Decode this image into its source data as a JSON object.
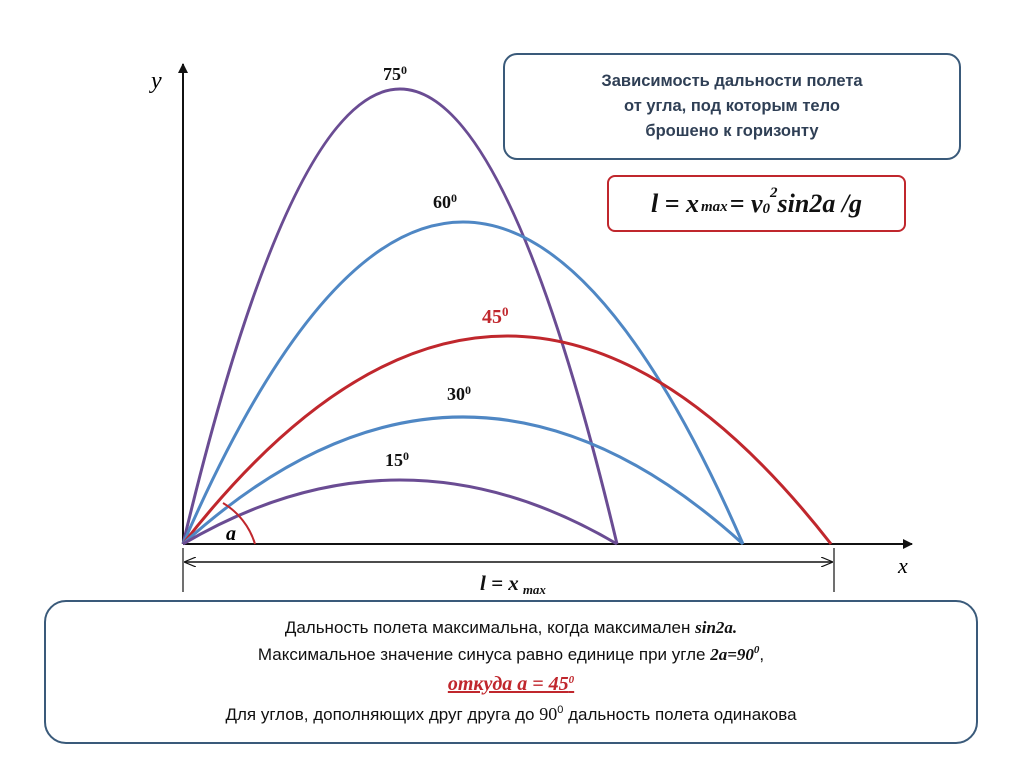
{
  "diagram": {
    "axis_y_label": "y",
    "axis_x_label": "x",
    "angle_label": "a",
    "range_label_main": "l = x",
    "range_label_sub": "max",
    "curves": [
      {
        "angle": "75",
        "sup": "0",
        "color": "#6a4c93",
        "height_fraction": 0.93
      },
      {
        "angle": "60",
        "sup": "0",
        "color": "#4f87c4",
        "height_fraction": 0.7
      },
      {
        "angle": "45",
        "sup": "0",
        "color": "#c0272d",
        "height_fraction": 0.47
      },
      {
        "angle": "30",
        "sup": "0",
        "color": "#4f87c4",
        "height_fraction": 0.3
      },
      {
        "angle": "15",
        "sup": "0",
        "color": "#6a4c93",
        "height_fraction": 0.15
      }
    ]
  },
  "title_box": {
    "line1": "Зависимость дальности полета",
    "line2": "от угла, под которым тело",
    "line3": "брошено к горизонту"
  },
  "formula_box": {
    "part1": "l = x",
    "sub_max": "max",
    "part2": "= v",
    "sub_0": "0",
    "sup_2": "2",
    "part3": "sin2a /g"
  },
  "bottom_box": {
    "line1_text": "Дальность полета максимальна, когда максимален ",
    "line1_expr": "sin2a.",
    "line2_text": "Максимальное значение синуса равно единице при угле ",
    "line2_expr": "2a=90",
    "line2_sup": "0",
    "line2_end": ",",
    "line3_text": "откуда  a = 45",
    "line3_sup": "0",
    "line4_text_a": "Для углов, дополняющих друг друга до ",
    "line4_num": "90",
    "line4_sup": "0",
    "line4_text_b": " дальность полета одинакова"
  },
  "colors": {
    "purple": "#6a4c93",
    "blue": "#4f87c4",
    "red": "#c0272d",
    "box_border": "#3a5a7a"
  }
}
